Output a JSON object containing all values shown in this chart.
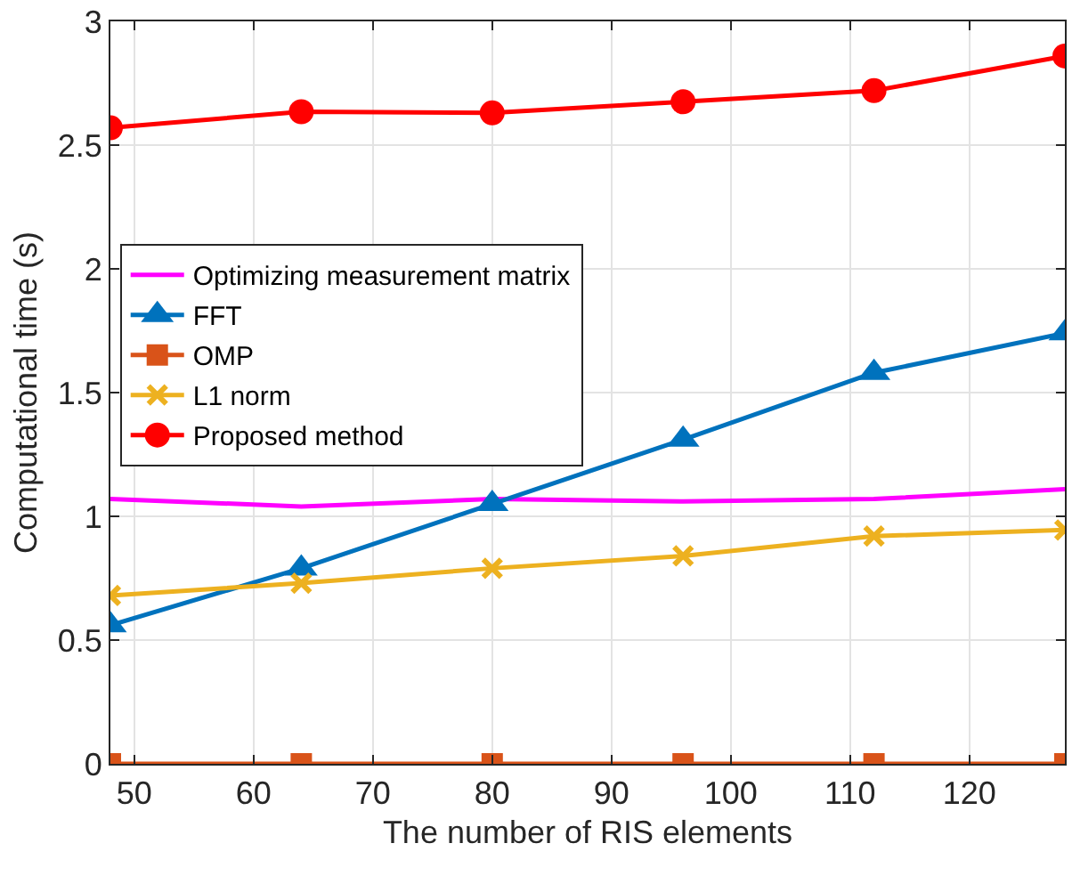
{
  "chart_data": {
    "type": "line",
    "xlabel": "The number of RIS elements",
    "ylabel": "Computational time (s)",
    "x": [
      48,
      64,
      80,
      96,
      112,
      128
    ],
    "series": [
      {
        "name": "Optimizing measurement matrix",
        "color": "#ff00ff",
        "marker": "none",
        "values": [
          1.07,
          1.04,
          1.07,
          1.06,
          1.07,
          1.11
        ]
      },
      {
        "name": "FFT",
        "color": "#0072bd",
        "marker": "triangle",
        "values": [
          0.56,
          0.79,
          1.05,
          1.31,
          1.58,
          1.74
        ]
      },
      {
        "name": "OMP",
        "color": "#d95319",
        "marker": "square",
        "values": [
          0,
          0,
          0,
          0,
          0,
          0
        ]
      },
      {
        "name": "L1 norm",
        "color": "#edb120",
        "marker": "cross",
        "values": [
          0.68,
          0.73,
          0.79,
          0.84,
          0.92,
          0.945
        ]
      },
      {
        "name": "Proposed method",
        "color": "#ff0000",
        "marker": "circle",
        "values": [
          2.57,
          2.635,
          2.63,
          2.675,
          2.72,
          2.86
        ]
      }
    ],
    "xlim": [
      48,
      128
    ],
    "xticks": [
      50,
      60,
      70,
      80,
      90,
      100,
      110,
      120
    ],
    "ylim": [
      0,
      3
    ],
    "yticks": [
      0,
      0.5,
      1,
      1.5,
      2,
      2.5,
      3
    ],
    "grid": true,
    "legend": "left",
    "line_style": "solid"
  }
}
